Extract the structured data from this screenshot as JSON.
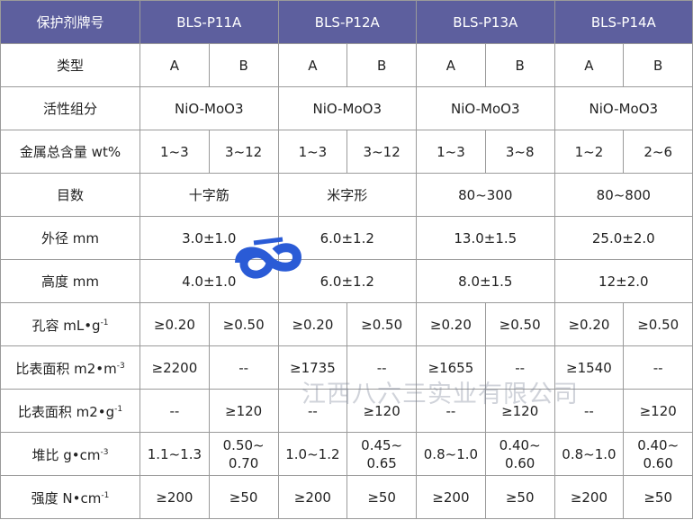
{
  "header": [
    "保护剂牌号",
    "BLS-P11A",
    "BLS-P12A",
    "BLS-P13A",
    "BLS-P14A"
  ],
  "rows": [
    {
      "label": "类型",
      "cells": [
        "A",
        "B",
        "A",
        "B",
        "A",
        "B",
        "A",
        "B"
      ]
    },
    {
      "label": "活性组分",
      "cells": [
        "NiO-MoO3",
        "NiO-MoO3",
        "NiO-MoO3",
        "NiO-MoO3"
      ]
    },
    {
      "label": "金属总含量 wt%",
      "cells": [
        "1~3",
        "3~12",
        "1~3",
        "3~12",
        "1~3",
        "3~8",
        "1~2",
        "2~6"
      ]
    },
    {
      "label": "目数",
      "cells": [
        "十字筋",
        "米字形",
        "80~300",
        "80~800"
      ]
    },
    {
      "label": "外径 mm",
      "cells": [
        "3.0±1.0",
        "6.0±1.2",
        "13.0±1.5",
        "25.0±2.0"
      ]
    },
    {
      "label": "高度 mm",
      "cells": [
        "4.0±1.0",
        "6.0±1.2",
        "8.0±1.5",
        "12±2.0"
      ]
    },
    {
      "label": {
        "text": "孔容 mL•g",
        "sup": "-1"
      },
      "cells": [
        "≥0.20",
        "≥0.50",
        "≥0.20",
        "≥0.50",
        "≥0.20",
        "≥0.50",
        "≥0.20",
        "≥0.50"
      ]
    },
    {
      "label": {
        "text": "比表面积 m2•m",
        "sup": "-3"
      },
      "cells": [
        "≥2200",
        "--",
        "≥1735",
        "--",
        "≥1655",
        "--",
        "≥1540",
        "--"
      ]
    },
    {
      "label": {
        "text": "比表面积 m2•g",
        "sup": "-1"
      },
      "cells": [
        "--",
        "≥120",
        "--",
        "≥120",
        "--",
        "≥120",
        "--",
        "≥120"
      ]
    },
    {
      "label": {
        "text": "堆比 g•cm",
        "sup": "-3"
      },
      "cells": [
        "1.1~1.3",
        [
          "0.50~",
          "0.70"
        ],
        "1.0~1.2",
        [
          "0.45~",
          "0.65"
        ],
        "0.8~1.0",
        [
          "0.40~",
          "0.60"
        ],
        "0.8~1.0",
        [
          "0.40~",
          "0.60"
        ]
      ]
    },
    {
      "label": {
        "text": "强度 N•cm",
        "sup": "-1"
      },
      "cells": [
        "≥200",
        "≥50",
        "≥200",
        "≥50",
        "≥200",
        "≥50",
        "≥200",
        "≥50"
      ]
    }
  ],
  "watermark": "江西八六三实业有限公司"
}
